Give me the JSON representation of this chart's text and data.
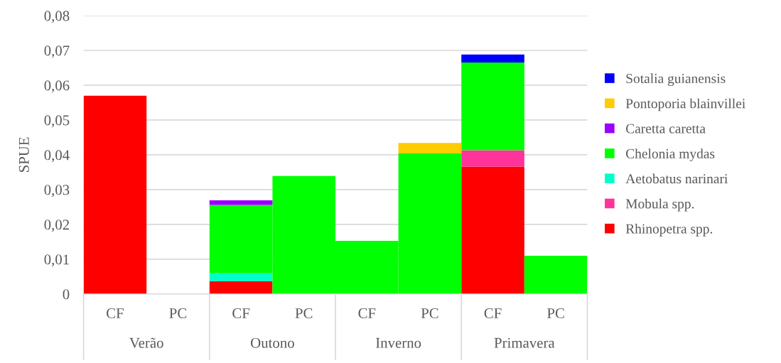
{
  "chart_data": {
    "type": "bar",
    "stacked": true,
    "ylabel": "SPUE",
    "categories": [
      "CF",
      "PC",
      "CF",
      "PC",
      "CF",
      "PC",
      "CF",
      "PC"
    ],
    "annotations": [
      "Verão",
      "Outono",
      "Inverno",
      "Primavera"
    ],
    "series": [
      {
        "name": "Rhinopetra spp.",
        "color": "#ff0000",
        "values": [
          0.057,
          0,
          0.0037,
          0,
          0,
          0,
          0.0366,
          0
        ]
      },
      {
        "name": "Mobula spp.",
        "color": "#ff3399",
        "values": [
          0,
          0,
          0,
          0,
          0,
          0,
          0.0047,
          0
        ]
      },
      {
        "name": "Aetobatus narinari",
        "color": "#00ffcc",
        "values": [
          0,
          0,
          0.0023,
          0,
          0,
          0,
          0,
          0
        ]
      },
      {
        "name": "Chelonia mydas",
        "color": "#00ff00",
        "values": [
          0,
          0,
          0.0196,
          0.0339,
          0.0153,
          0.0404,
          0.0252,
          0.011
        ]
      },
      {
        "name": "Caretta caretta",
        "color": "#9900ff",
        "values": [
          0,
          0,
          0.0013,
          0,
          0,
          0,
          0,
          0
        ]
      },
      {
        "name": "Pontoporia blainvillei",
        "color": "#ffcc00",
        "values": [
          0,
          0,
          0,
          0,
          0,
          0.003,
          0,
          0
        ]
      },
      {
        "name": "Sotalia guianensis",
        "color": "#0000ff",
        "values": [
          0,
          0,
          0,
          0,
          0,
          0,
          0.0023,
          0
        ]
      }
    ],
    "ylim": [
      0,
      0.08
    ],
    "yticks": [
      0,
      {
        "value": 0.01,
        "label": "0,01"
      },
      {
        "value": 0.02,
        "label": "0,02"
      },
      {
        "value": 0.03,
        "label": "0,03"
      },
      {
        "value": 0.04,
        "label": "0,04"
      },
      {
        "value": 0.05,
        "label": "0,05"
      },
      {
        "value": 0.06,
        "label": "0,06"
      },
      {
        "value": 0.07,
        "label": "0,07"
      },
      {
        "value": 0.08,
        "label": "0,08"
      }
    ],
    "grid": "y",
    "legend": "right"
  }
}
